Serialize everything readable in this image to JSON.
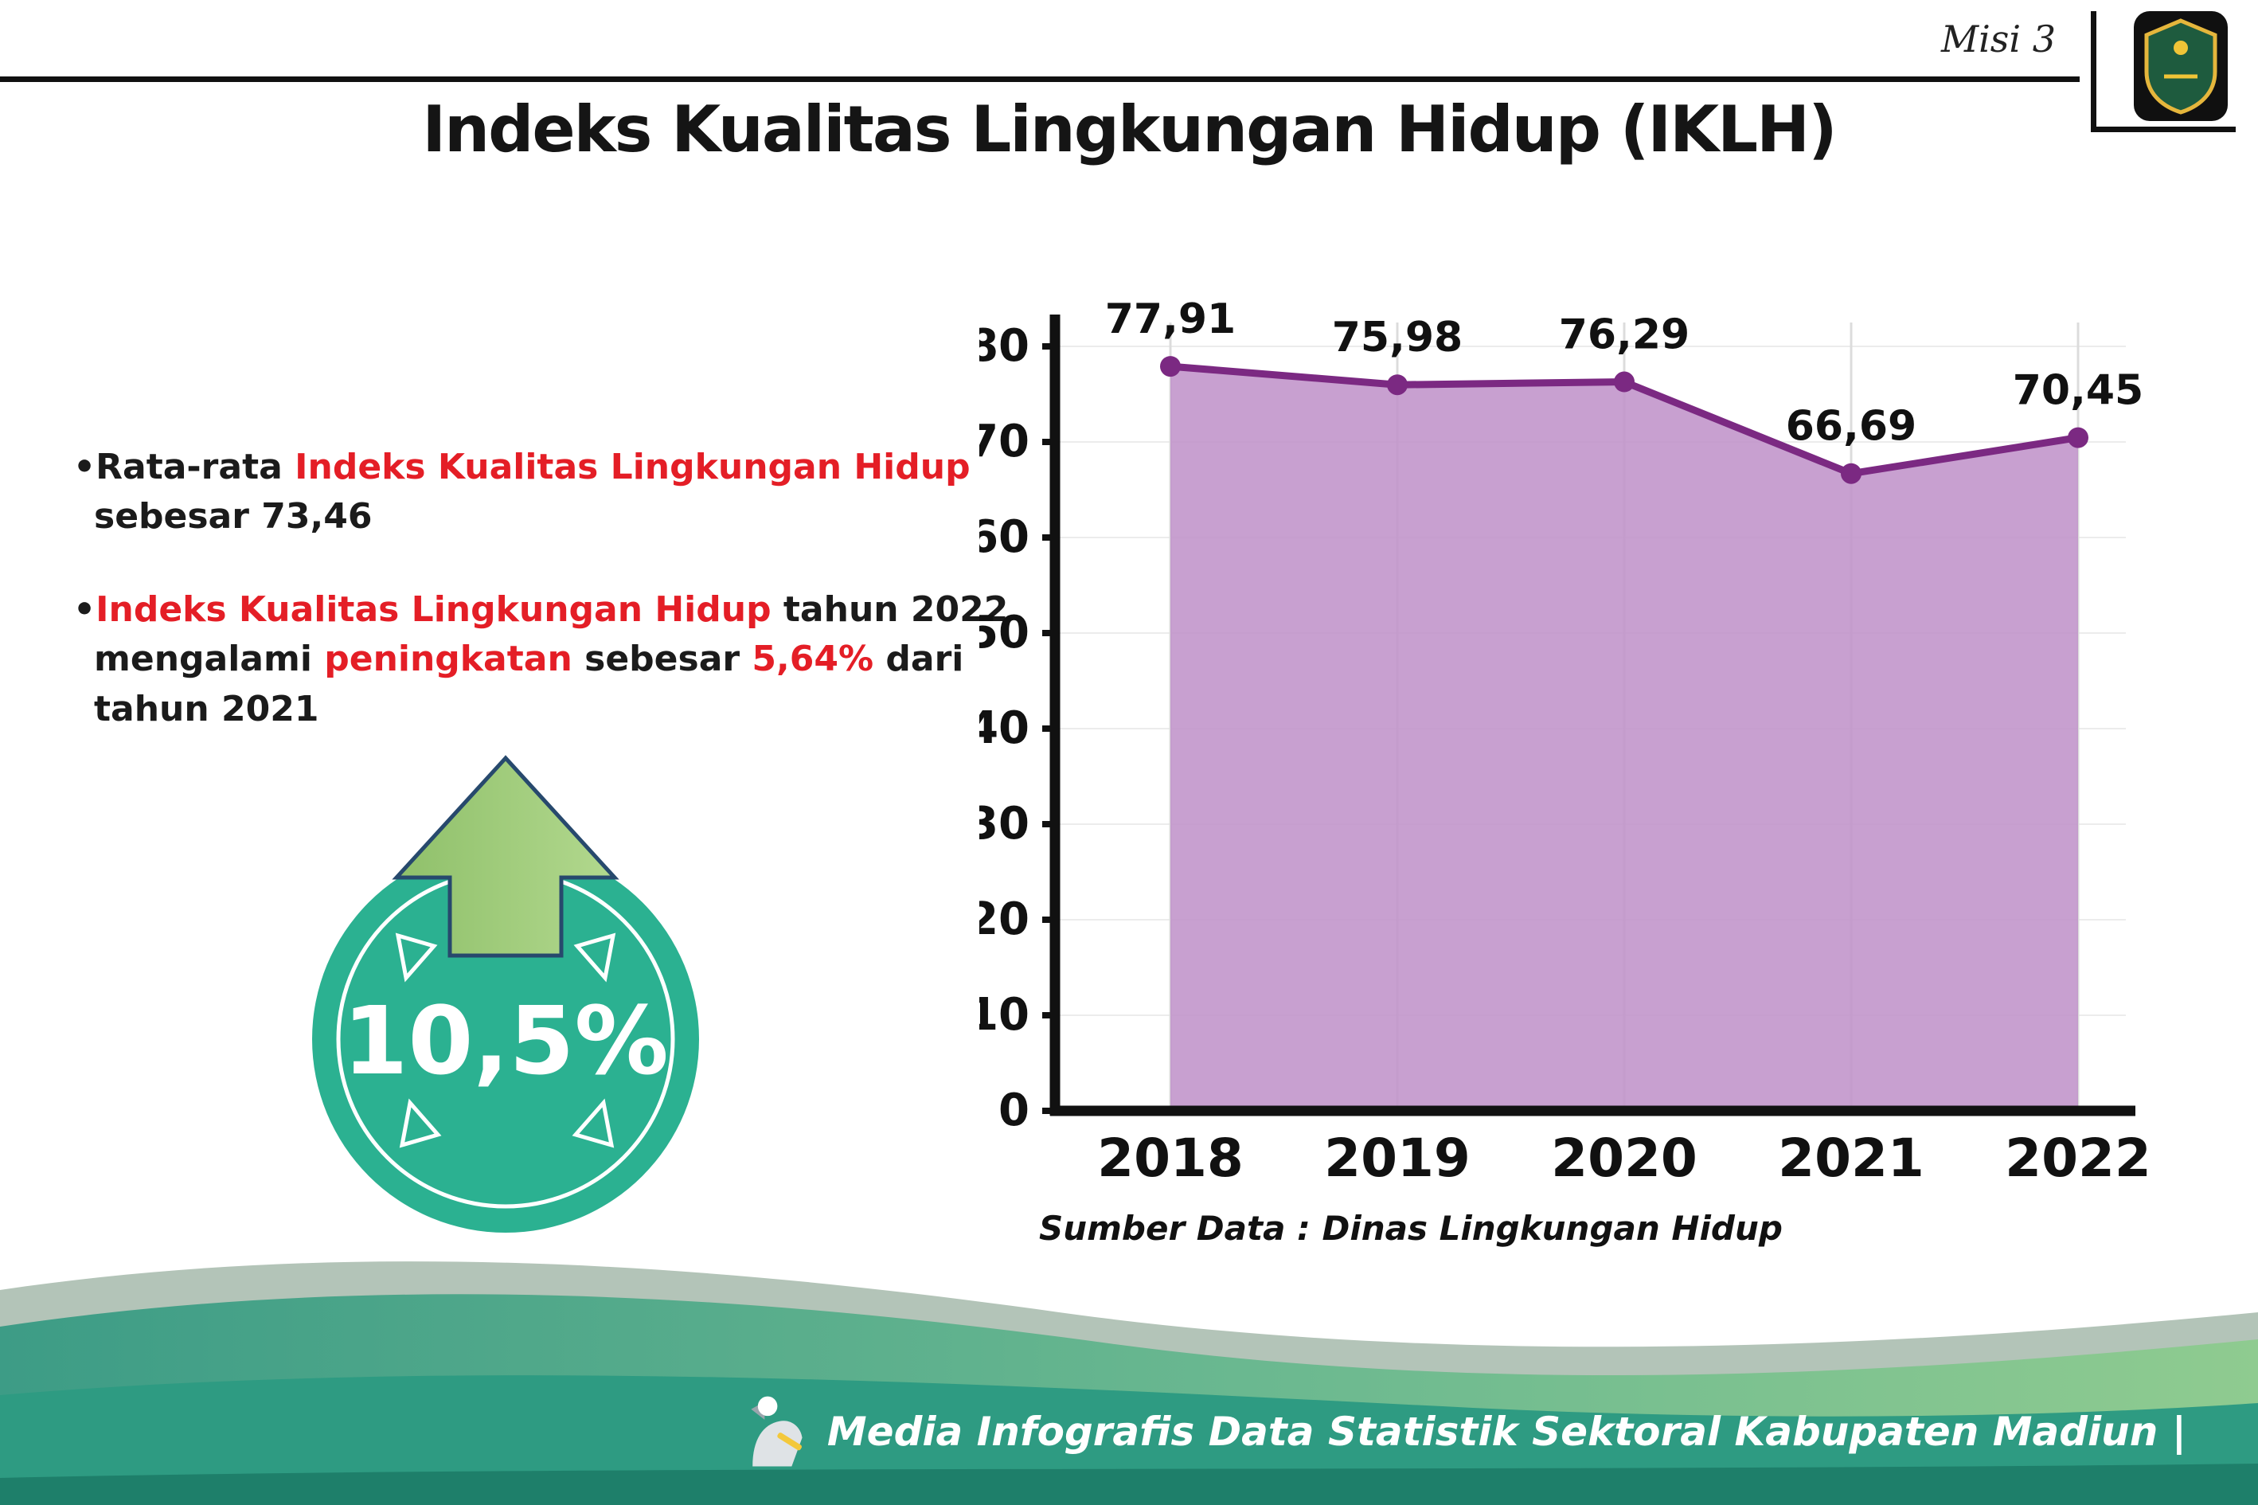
{
  "header": {
    "misi_label": "Misi 3",
    "title": "Indeks Kualitas Lingkungan Hidup (IKLH)"
  },
  "bullets": {
    "dot": "•",
    "b1_part1": "Rata-rata ",
    "b1_part2": "Indeks Kualitas Lingkungan Hidup",
    "b1_part3": "sebesar 73,46",
    "b2_part1": "Indeks Kualitas Lingkungan Hidup",
    "b2_part2": " tahun 2022",
    "b2_part3": "mengalami ",
    "b2_part4": "peningkatan",
    "b2_part5": " sebesar ",
    "b2_part6": "5,64%",
    "b2_part7": " dari",
    "b2_part8": "tahun 2021"
  },
  "badge": {
    "value": "10,5%"
  },
  "chart_data": {
    "type": "area",
    "title": "Indeks Kualitas Lingkungan Hidup (IKLH)",
    "categories": [
      "2018",
      "2019",
      "2020",
      "2021",
      "2022"
    ],
    "values": [
      77.91,
      75.98,
      76.29,
      66.69,
      70.45
    ],
    "point_labels": [
      "77,91",
      "75,98",
      "76,29",
      "66,69",
      "70,45"
    ],
    "xlabel": "",
    "ylabel": "",
    "ylim": [
      0,
      80
    ],
    "ytick_step": 10,
    "grid": true,
    "legend": "none",
    "line_color": "#7b2982",
    "fill_color": "#c093ca"
  },
  "source": "Sumber Data : Dinas Lingkungan Hidup",
  "footer": {
    "text": "Media Infografis Data Statistik Sektoral Kabupaten Madiun |"
  },
  "colors": {
    "accent_red": "#e41e26",
    "badge_teal": "#2bb191",
    "arrow_green": "#9cc87e",
    "chart_line": "#7b2982",
    "chart_fill": "#c093ca",
    "footer_teal": "#2e9b82"
  }
}
